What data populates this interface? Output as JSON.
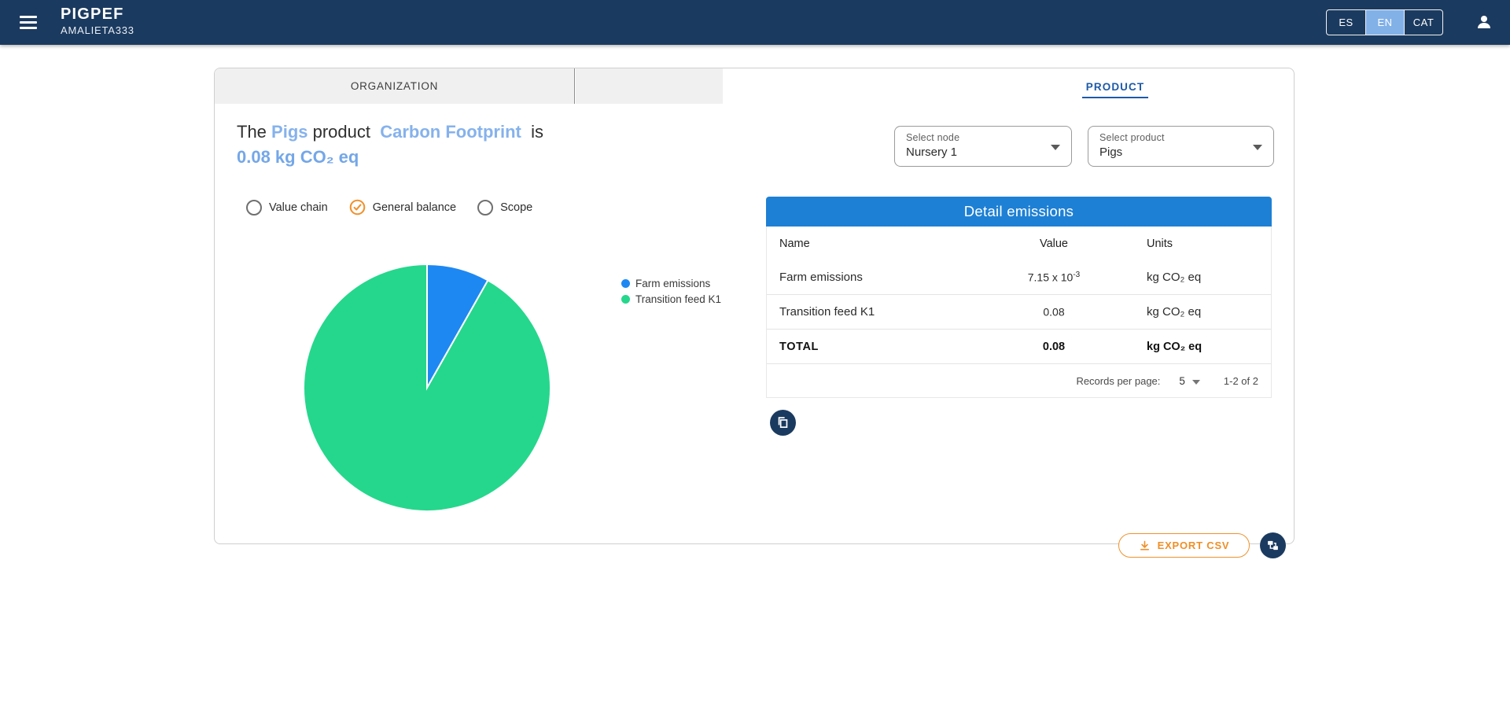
{
  "colors": {
    "navbar_bg": "#1b3a5f",
    "lang_active_bg": "#82b1e8",
    "headline_highlight_blue": "#85b2ec",
    "headline_value_blue": "#74a7e8",
    "tab_active_blue": "#1d5aa8",
    "table_header_bg": "#1e80d4",
    "pie_blue": "#1e88f2",
    "pie_green": "#25d78c",
    "orange_accent": "#f0922e",
    "icon_circle_navy": "#1b3a5f"
  },
  "navbar": {
    "title": "PIGPEF",
    "subtitle": "AMALIETA333",
    "languages": [
      {
        "label": "ES"
      },
      {
        "label": "EN"
      },
      {
        "label": "CAT"
      }
    ],
    "active_language": "EN"
  },
  "tabs": {
    "organization": "ORGANIZATION",
    "product": "PRODUCT"
  },
  "headline": {
    "part1": "The ",
    "product": "Pigs",
    "part2": " product  ",
    "highlight": "Carbon Footprint",
    "part3": "  is",
    "value": "0.08 kg CO₂ eq"
  },
  "filters": {
    "radios": [
      {
        "label": "Value chain",
        "selected": false
      },
      {
        "label": "General balance",
        "selected": true
      },
      {
        "label": "Scope",
        "selected": false
      }
    ]
  },
  "selects": {
    "node": {
      "label": "Select node",
      "value": "Nursery 1"
    },
    "product": {
      "label": "Select product",
      "value": "Pigs"
    }
  },
  "table": {
    "title": "Detail emissions",
    "columns": [
      "Name",
      "Value",
      "Units"
    ],
    "rows": [
      {
        "name": "Farm emissions",
        "value": "7.15 x 10",
        "value_exp": "-3",
        "units": "kg CO₂ eq"
      },
      {
        "name": "Transition feed K1",
        "value": "0.08",
        "value_exp": "",
        "units": "kg CO₂ eq"
      }
    ],
    "total": {
      "name": "TOTAL",
      "value": "0.08",
      "units": "kg CO₂ eq"
    },
    "paginator": {
      "label": "Records per page:",
      "page_size": "5",
      "range": "1-2 of 2"
    }
  },
  "chart_data": {
    "type": "pie",
    "labels": [
      "Farm emissions",
      "Transition feed K1"
    ],
    "values": [
      0.00715,
      0.08
    ],
    "colors": [
      "#1e88f2",
      "#25d78c"
    ],
    "units": "kg CO₂ eq",
    "legend_position": "right",
    "start_angle_deg": -90,
    "direction": "clockwise"
  },
  "export": {
    "label": "EXPORT CSV"
  }
}
